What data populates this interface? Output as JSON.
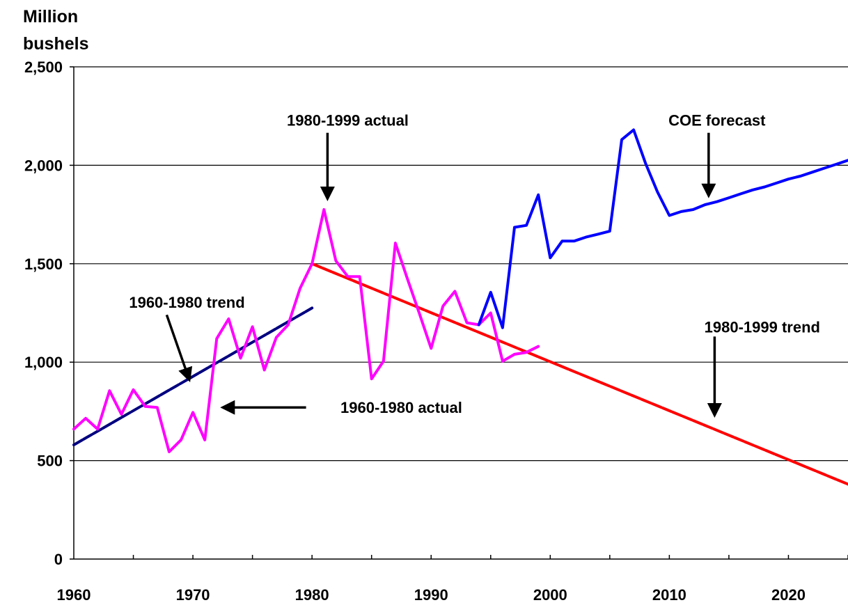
{
  "chart_data": {
    "type": "line",
    "ylabel_line1": "Million",
    "ylabel_line2": "bushels",
    "xlim": [
      1960,
      2025
    ],
    "ylim": [
      0,
      2500
    ],
    "x_ticks": [
      1960,
      1970,
      1980,
      1990,
      2000,
      2010,
      2020
    ],
    "x_tick_labels": [
      "1960",
      "1970",
      "1980",
      "1990",
      "2000",
      "2010",
      "2020"
    ],
    "y_ticks": [
      0,
      500,
      1000,
      1500,
      2000,
      2500
    ],
    "y_tick_labels": [
      "0",
      "500",
      "1,000",
      "1,500",
      "2,000",
      "2,500"
    ],
    "grid": "horizontal",
    "colors": {
      "actual": "#ff00ff",
      "trend_1960_1980": "#000080",
      "trend_1980_1999": "#ff0000",
      "forecast": "#0000ff"
    },
    "series": [
      {
        "key": "actual",
        "x": [
          1960,
          1961,
          1962,
          1963,
          1964,
          1965,
          1966,
          1967,
          1968,
          1969,
          1970,
          1971,
          1972,
          1973,
          1974,
          1975,
          1976,
          1977,
          1978,
          1979,
          1980,
          1981,
          1982,
          1983,
          1984,
          1985,
          1986,
          1987,
          1988,
          1989,
          1990,
          1991,
          1992,
          1993,
          1994,
          1995,
          1996,
          1997,
          1998,
          1999
        ],
        "values": [
          660,
          715,
          660,
          855,
          735,
          860,
          775,
          770,
          545,
          605,
          745,
          605,
          1120,
          1220,
          1020,
          1180,
          960,
          1125,
          1190,
          1375,
          1500,
          1775,
          1515,
          1435,
          1435,
          915,
          1005,
          1605,
          1425,
          1250,
          1070,
          1285,
          1360,
          1200,
          1190,
          1250,
          1005,
          1040,
          1050,
          1080
        ]
      },
      {
        "key": "trend_1960_1980",
        "x": [
          1960,
          1980
        ],
        "values": [
          580,
          1275
        ]
      },
      {
        "key": "trend_1980_1999",
        "x": [
          1980,
          2025
        ],
        "values": [
          1500,
          380
        ]
      },
      {
        "key": "forecast",
        "x": [
          1994,
          1995,
          1996,
          1997,
          1998,
          1999,
          2000,
          2001,
          2002,
          2003,
          2004,
          2005,
          2006,
          2007,
          2008,
          2009,
          2010,
          2011,
          2012,
          2013,
          2014,
          2015,
          2016,
          2017,
          2018,
          2019,
          2020,
          2021,
          2022,
          2023,
          2024,
          2025
        ],
        "values": [
          1190,
          1355,
          1175,
          1685,
          1695,
          1850,
          1530,
          1615,
          1615,
          1635,
          1650,
          1665,
          2130,
          2180,
          2010,
          1865,
          1745,
          1765,
          1775,
          1800,
          1815,
          1835,
          1855,
          1875,
          1890,
          1910,
          1930,
          1945,
          1965,
          1985,
          2005,
          2025
        ]
      }
    ],
    "annotations": [
      {
        "key": "actual_1980_1999",
        "text": "1980-1999 actual",
        "label_x": 1983,
        "label_y": 2230,
        "arrow_from": [
          1981.3,
          2165
        ],
        "arrow_to": [
          1981.3,
          1830
        ]
      },
      {
        "key": "coe_forecast",
        "text": "COE forecast",
        "label_x": 2014,
        "label_y": 2230,
        "arrow_from": [
          2013.3,
          2165
        ],
        "arrow_to": [
          2013.3,
          1845
        ]
      },
      {
        "key": "trend_1960_1980",
        "text": "1960-1980 trend",
        "label_x": 1969.5,
        "label_y": 1305,
        "arrow_from": [
          1967.8,
          1240
        ],
        "arrow_to": [
          1969.7,
          910
        ]
      },
      {
        "key": "actual_1960_1980",
        "text": "1960-1980 actual",
        "label_x": 1987.5,
        "label_y": 770,
        "arrow_from": [
          1979.5,
          770
        ],
        "arrow_to": [
          1972.5,
          770
        ]
      },
      {
        "key": "trend_1980_1999",
        "text": "1980-1999 trend",
        "label_x": 2017.8,
        "label_y": 1180,
        "arrow_from": [
          2013.8,
          1130
        ],
        "arrow_to": [
          2013.8,
          730
        ]
      }
    ]
  }
}
